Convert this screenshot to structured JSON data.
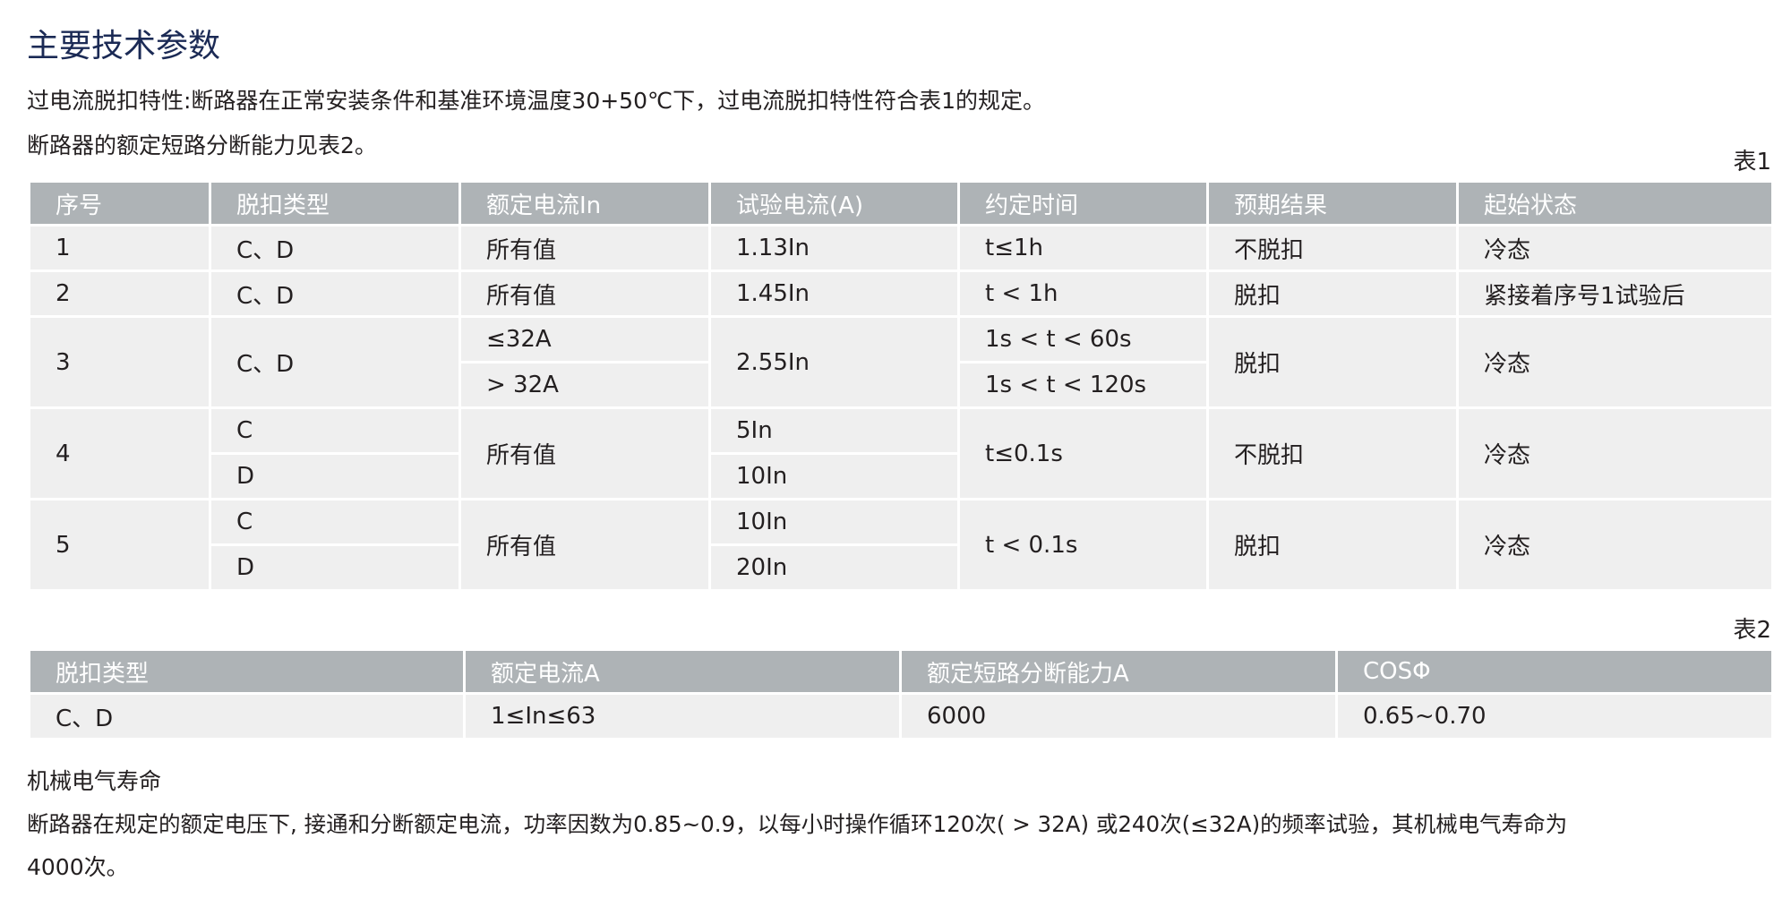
{
  "title": "主要技术参数",
  "intro": {
    "line1": "过电流脱扣特性:断路器在正常安装条件和基准环境温度30+50℃下，过电流脱扣特性符合表1的规定。",
    "line2": "断路器的额定短路分断能力见表2。"
  },
  "table1": {
    "caption": "表1",
    "headers": [
      "序号",
      "脱扣类型",
      "额定电流In",
      "试验电流(A)",
      "约定时间",
      "预期结果",
      "起始状态"
    ],
    "rows": [
      {
        "no": "1",
        "type": "C、D",
        "rated": "所有值",
        "test": "1.13In",
        "time": "t≤1h",
        "result": "不脱扣",
        "state": "冷态"
      },
      {
        "no": "2",
        "type": "C、D",
        "rated": "所有值",
        "test": "1.45In",
        "time": "t < 1h",
        "result": "脱扣",
        "state": "紧接着序号1试验后"
      },
      {
        "no": "3",
        "type": "C、D",
        "rated_a": "≤32A",
        "rated_b": "> 32A",
        "test": "2.55In",
        "time_a": "1s < t < 60s",
        "time_b": "1s < t < 120s",
        "result": "脱扣",
        "state": "冷态"
      },
      {
        "no": "4",
        "type_a": "C",
        "type_b": "D",
        "rated": "所有值",
        "test_a": "5In",
        "test_b": "10In",
        "time": "t≤0.1s",
        "result": "不脱扣",
        "state": "冷态"
      },
      {
        "no": "5",
        "type_a": "C",
        "type_b": "D",
        "rated": "所有值",
        "test_a": "10In",
        "test_b": "20In",
        "time": "t < 0.1s",
        "result": "脱扣",
        "state": "冷态"
      }
    ]
  },
  "table2": {
    "caption": "表2",
    "headers": [
      "脱扣类型",
      "额定电流A",
      "额定短路分断能力A",
      "COSΦ"
    ],
    "row": [
      "C、D",
      "1≤In≤63",
      "6000",
      "0.65~0.70"
    ]
  },
  "life": {
    "heading": "机械电气寿命",
    "line1": "断路器在规定的额定电压下, 接通和分断额定电流，功率因数为0.85~0.9，以每小时操作循环120次( > 32A) 或240次(≤32A)的频率试验，其机械电气寿命为",
    "line2": "4000次。"
  },
  "colors": {
    "title": "#1b2a55",
    "header_bg": "#aeb3b6",
    "cell_bg": "#efefef",
    "text": "#231f20"
  }
}
